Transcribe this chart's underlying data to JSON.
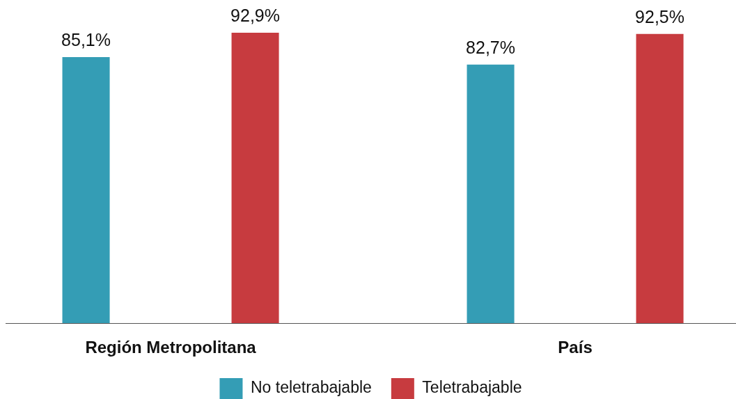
{
  "chart_data": {
    "type": "bar",
    "categories": [
      "Región Metropolitana",
      "País"
    ],
    "series": [
      {
        "name": "No teletrabajable",
        "color": "#349db5",
        "values": [
          85.1,
          82.7
        ],
        "value_labels": [
          "85,1%",
          "82,7%"
        ]
      },
      {
        "name": "Teletrabajable",
        "color": "#c73b3f",
        "values": [
          92.9,
          92.5
        ],
        "value_labels": [
          "92,9%",
          "92,5%"
        ]
      }
    ],
    "legend": "bottom",
    "tick_labels": "x"
  }
}
